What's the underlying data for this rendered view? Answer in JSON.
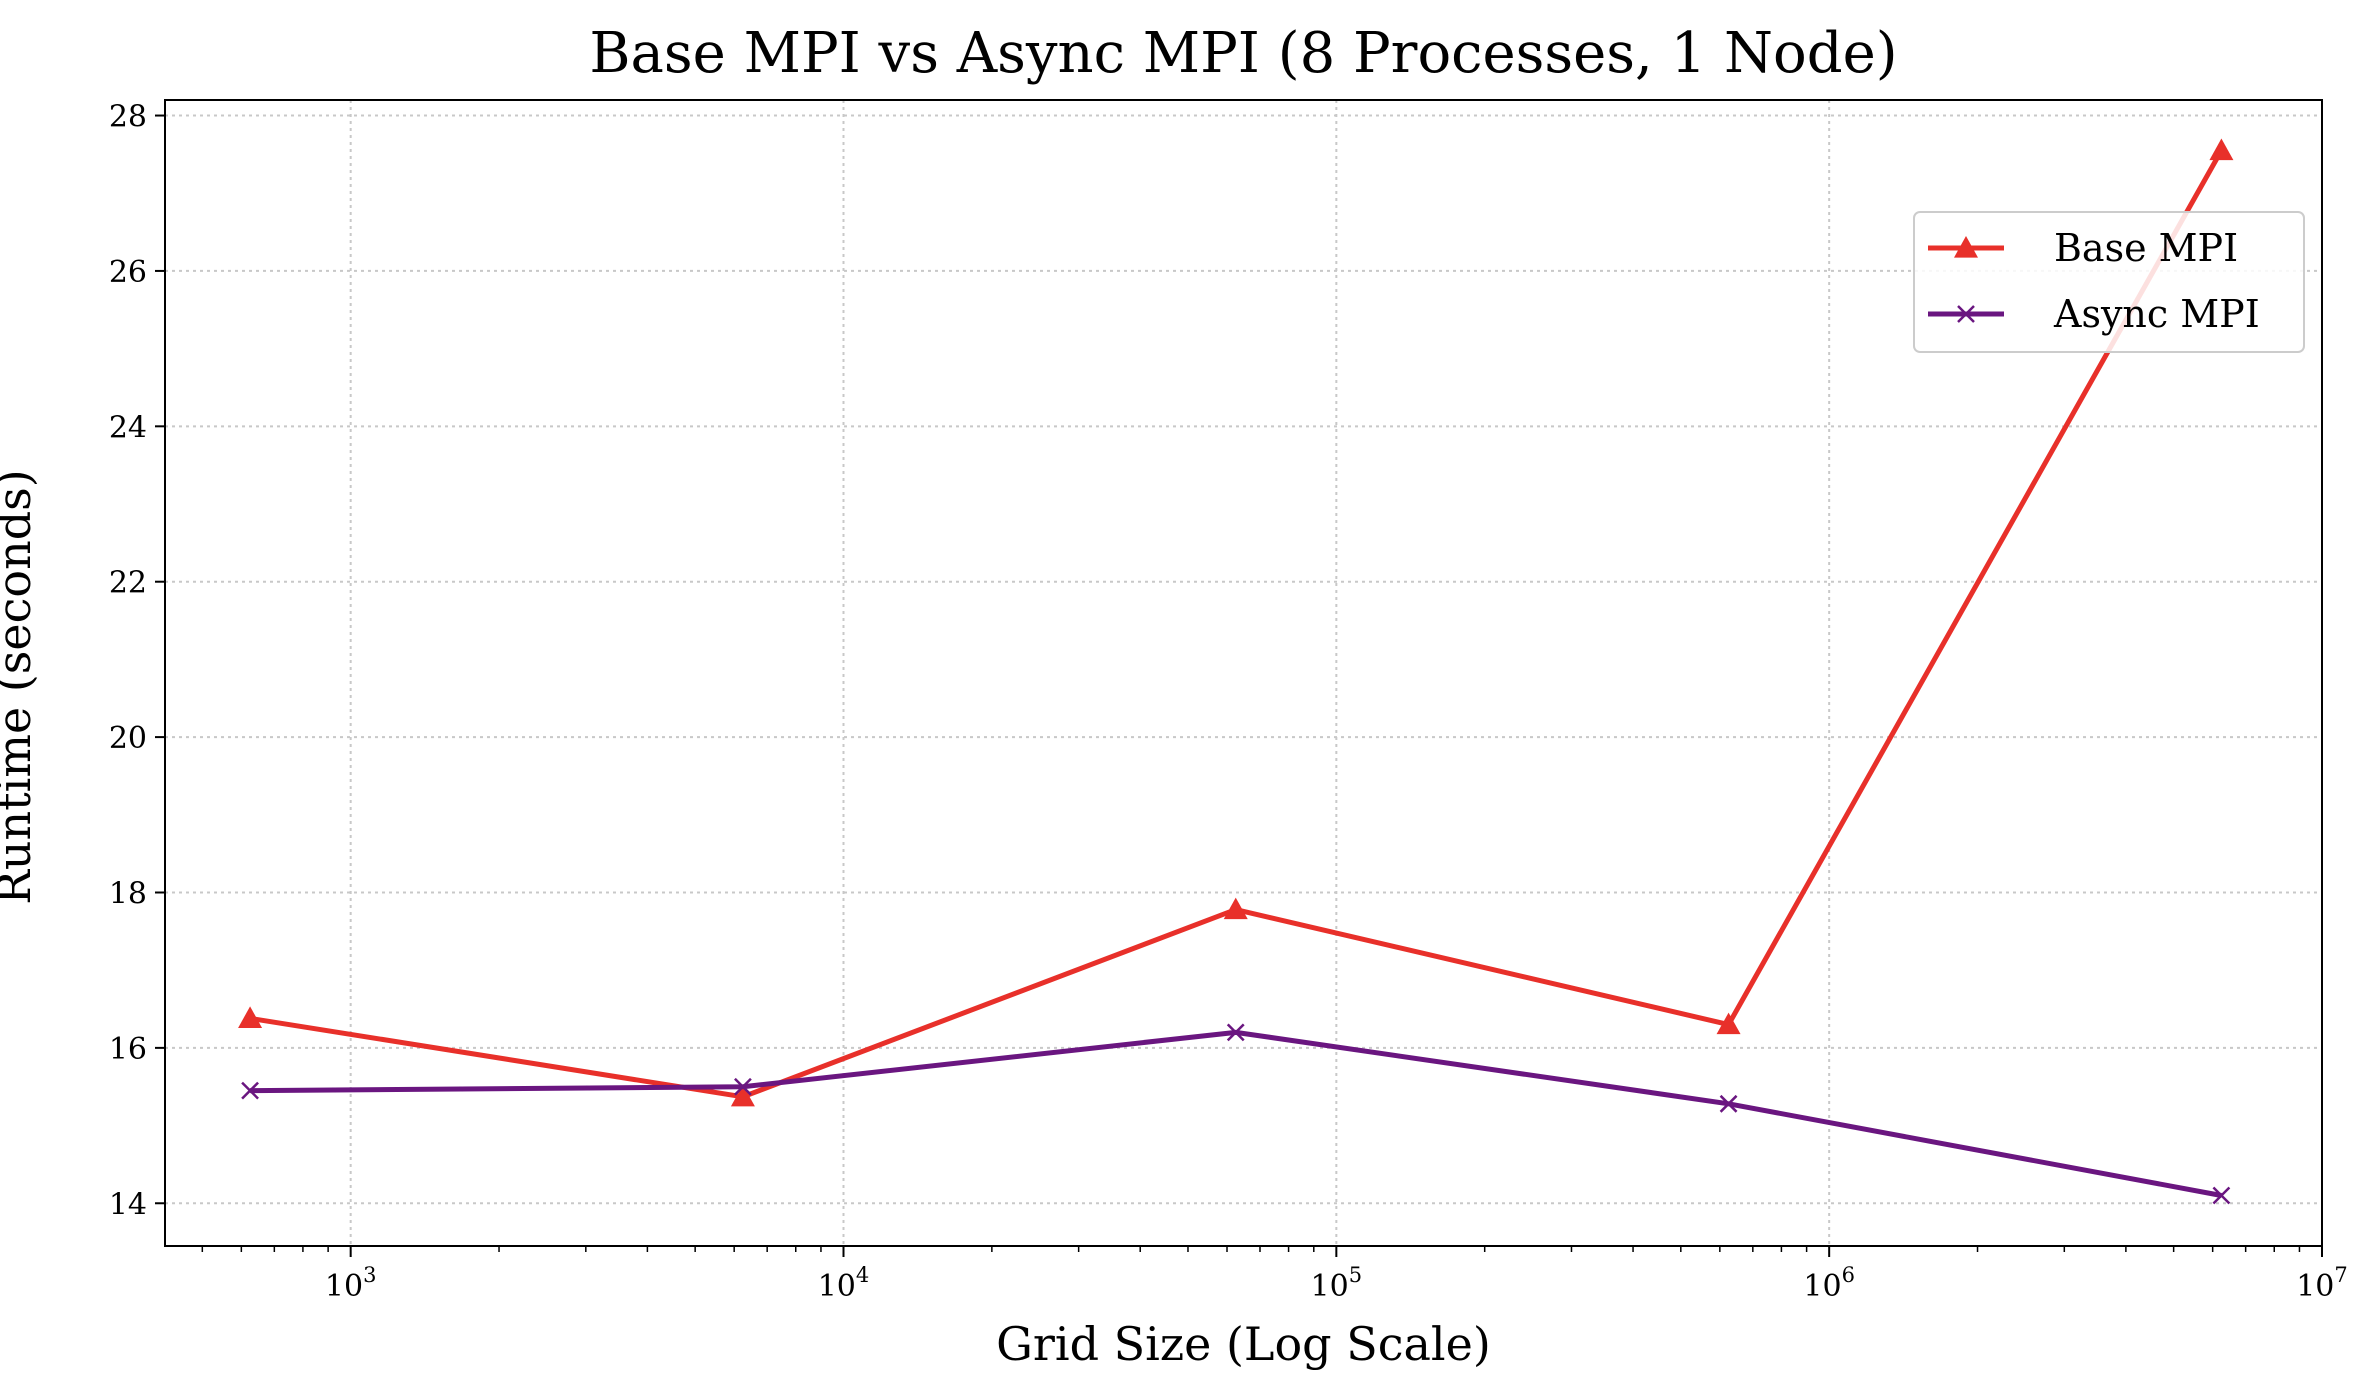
{
  "chart_data": {
    "type": "line",
    "title": "Base MPI vs Async MPI (8 Processes, 1 Node)",
    "xlabel": "Grid Size (Log Scale)",
    "ylabel": "Runtime (seconds)",
    "xscale": "log",
    "xlim": [
      420,
      10000000
    ],
    "ylim": [
      13.45,
      28.2
    ],
    "x_ticks": [
      {
        "value": 1000,
        "mantissa": "10",
        "exponent": "3"
      },
      {
        "value": 10000,
        "mantissa": "10",
        "exponent": "4"
      },
      {
        "value": 100000,
        "mantissa": "10",
        "exponent": "5"
      },
      {
        "value": 1000000,
        "mantissa": "10",
        "exponent": "6"
      },
      {
        "value": 10000000,
        "mantissa": "10",
        "exponent": "7"
      }
    ],
    "y_ticks": [
      {
        "value": 14,
        "label": "14"
      },
      {
        "value": 16,
        "label": "16"
      },
      {
        "value": 18,
        "label": "18"
      },
      {
        "value": 20,
        "label": "20"
      },
      {
        "value": 22,
        "label": "22"
      },
      {
        "value": 24,
        "label": "24"
      },
      {
        "value": 26,
        "label": "26"
      },
      {
        "value": 28,
        "label": "28"
      }
    ],
    "grid": true,
    "legend_position": "upper-right",
    "x": [
      625,
      6250,
      62500,
      625000,
      6250000
    ],
    "series": [
      {
        "name": "Base MPI",
        "color": "#e8302a",
        "marker": "triangle",
        "values": [
          16.38,
          15.37,
          17.78,
          16.3,
          27.55
        ]
      },
      {
        "name": "Async MPI",
        "color": "#6a1680",
        "marker": "x",
        "values": [
          15.45,
          15.5,
          16.2,
          15.28,
          14.1
        ]
      }
    ]
  }
}
